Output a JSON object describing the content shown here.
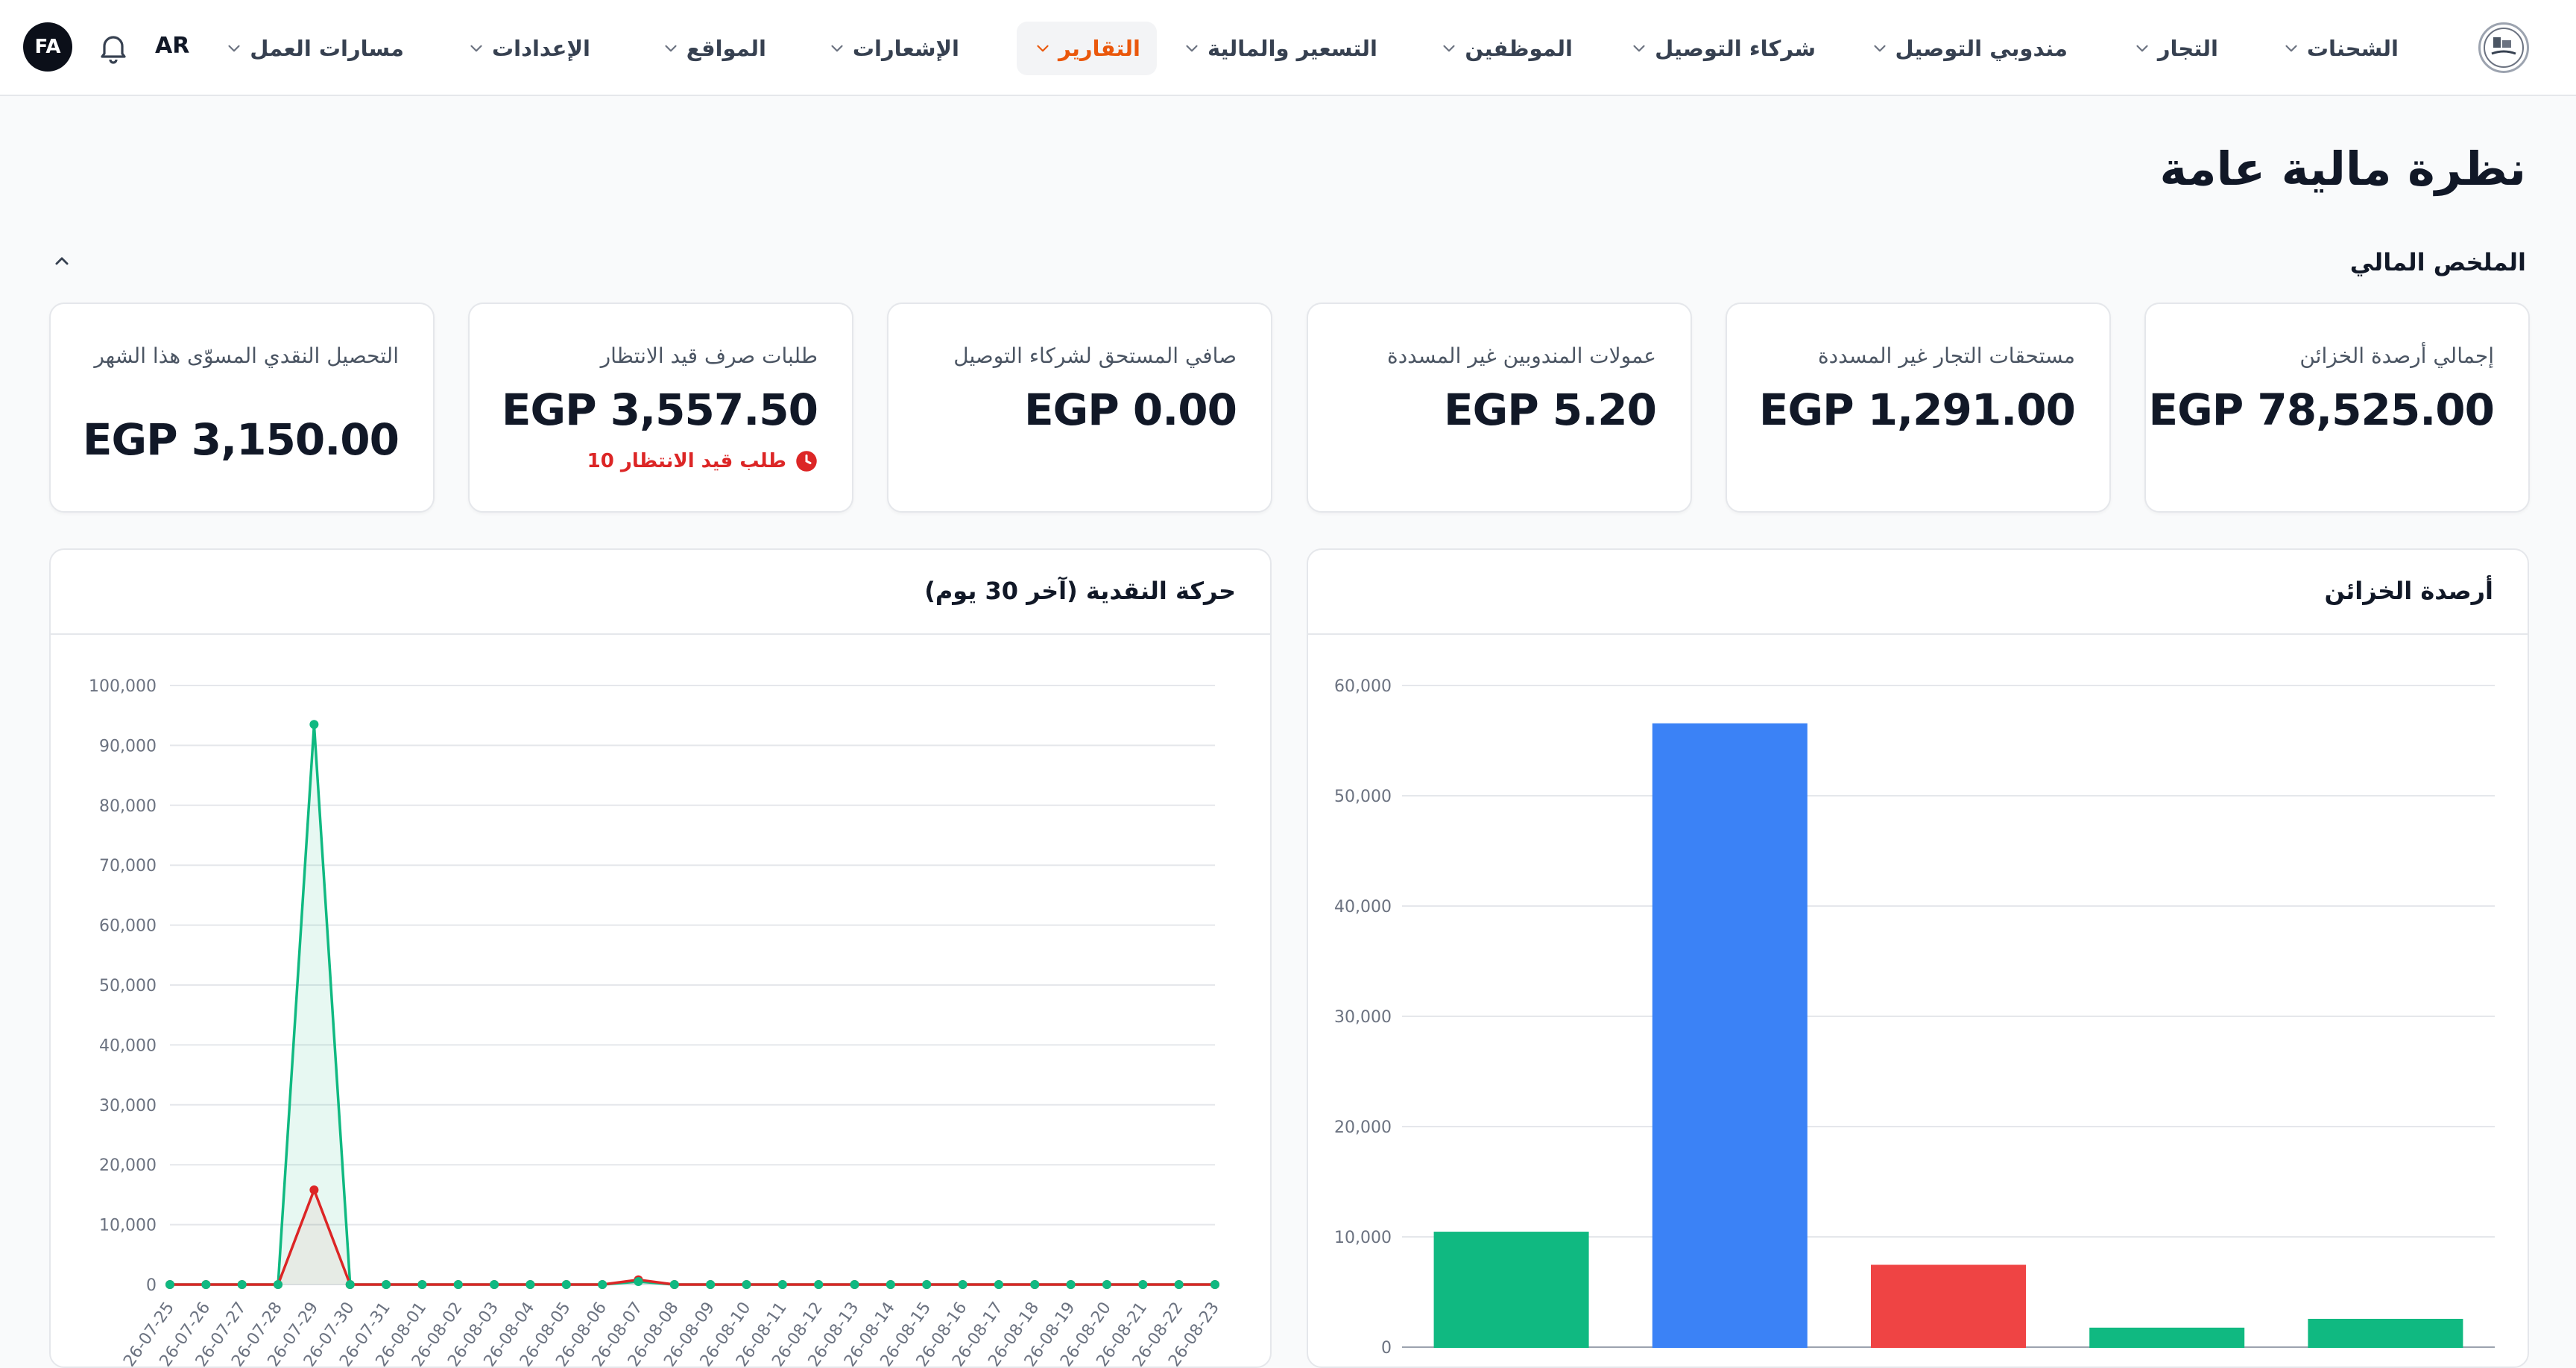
{
  "nav": {
    "items": [
      {
        "label": "الشحنات"
      },
      {
        "label": "التجار"
      },
      {
        "label": "مندوبي التوصيل"
      },
      {
        "label": "شركاء التوصيل"
      },
      {
        "label": "الموظفين"
      },
      {
        "label": "التسعير والمالية"
      },
      {
        "label": "التقارير",
        "active": true
      },
      {
        "label": "الإشعارات"
      },
      {
        "label": "المواقع"
      },
      {
        "label": "الإعدادات"
      },
      {
        "label": "مسارات العمل"
      }
    ],
    "lang": "AR",
    "avatar": "FA"
  },
  "page": {
    "title": "نظرة مالية عامة",
    "section_title": "الملخص المالي"
  },
  "cards": [
    {
      "label": "إجمالي أرصدة الخزائن",
      "value": "EGP 78,525.00"
    },
    {
      "label": "مستحقات التجار غير المسددة",
      "value": "EGP 1,291.00"
    },
    {
      "label": "عمولات المندوبين غير المسددة",
      "value": "EGP 5.20"
    },
    {
      "label": "صافي المستحق لشركاء التوصيل",
      "value": "EGP 0.00"
    },
    {
      "label": "طلبات صرف قيد الانتظار",
      "value": "EGP 3,557.50",
      "sub": "10 طلب قيد الانتظار"
    },
    {
      "label": "التحصيل النقدي المسوّى هذا الشهر",
      "value": "EGP 3,150.00"
    }
  ],
  "panels": {
    "treasury_title": "أرصدة الخزائن",
    "cashflow_title": "حركة النقدية (آخر 30 يوم)"
  },
  "colors": {
    "accent": "#ea580c",
    "green": "#10b981",
    "blue": "#3b82f6",
    "red": "#ef4444",
    "line_red": "#dc2626",
    "dark": "#0b0f19"
  },
  "chart_data": [
    {
      "type": "bar",
      "ylim": [
        0,
        60000
      ],
      "yticks": [
        0,
        10000,
        20000,
        30000,
        40000,
        50000,
        60000
      ],
      "ytick_labels": [
        "0",
        "10,000",
        "20,000",
        "30,000",
        "40,000",
        "50,000",
        "60,000"
      ],
      "values": [
        10400,
        56500,
        7400,
        1700,
        2500
      ],
      "colors": [
        "#10b981",
        "#3b82f6",
        "#ef4444",
        "#10b981",
        "#10b981"
      ]
    },
    {
      "type": "line",
      "ylim": [
        0,
        100000
      ],
      "yticks": [
        0,
        10000,
        20000,
        30000,
        40000,
        50000,
        60000,
        70000,
        80000,
        90000,
        100000
      ],
      "ytick_labels": [
        "0",
        "10,000",
        "20,000",
        "30,000",
        "40,000",
        "50,000",
        "60,000",
        "70,000",
        "80,000",
        "90,000",
        "100,000"
      ],
      "x": [
        "2026-07-25",
        "2026-07-26",
        "2026-07-27",
        "2026-07-28",
        "2026-07-29",
        "2026-07-30",
        "2026-07-31",
        "2026-08-01",
        "2026-08-02",
        "2026-08-03",
        "2026-08-04",
        "2026-08-05",
        "2026-08-06",
        "2026-08-07",
        "2026-08-08",
        "2026-08-09",
        "2026-08-10",
        "2026-08-11",
        "2026-08-12",
        "2026-08-13",
        "2026-08-14",
        "2026-08-15",
        "2026-08-16",
        "2026-08-17",
        "2026-08-18",
        "2026-08-19",
        "2026-08-20",
        "2026-08-21",
        "2026-08-22",
        "2026-08-23"
      ],
      "x_visible": [
        "26-07-25",
        "26-07-26",
        "26-07-27",
        "26-07-28",
        "26-07-29",
        "26-07-30",
        "26-07-31",
        "26-08-01",
        "26-08-02",
        "26-08-03",
        "26-08-04",
        "26-08-05",
        "26-08-06",
        "26-08-07",
        "26-08-08",
        "26-08-09",
        "26-08-10",
        "26-08-11",
        "26-08-12",
        "26-08-13",
        "26-08-14",
        "26-08-15",
        "26-08-16",
        "26-08-17",
        "26-08-18",
        "26-08-19",
        "26-08-20",
        "26-08-21",
        "26-08-22",
        "26-08-23"
      ],
      "series": [
        {
          "color": "#10b981",
          "values": [
            0,
            0,
            0,
            0,
            93500,
            0,
            0,
            0,
            0,
            0,
            0,
            0,
            0,
            500,
            0,
            0,
            0,
            0,
            0,
            0,
            0,
            0,
            0,
            0,
            0,
            0,
            0,
            0,
            0,
            0
          ]
        },
        {
          "color": "#dc2626",
          "values": [
            0,
            0,
            0,
            0,
            15800,
            0,
            0,
            0,
            0,
            0,
            0,
            0,
            0,
            800,
            0,
            0,
            0,
            0,
            0,
            0,
            0,
            0,
            0,
            0,
            0,
            0,
            0,
            0,
            0,
            0
          ]
        }
      ]
    }
  ]
}
